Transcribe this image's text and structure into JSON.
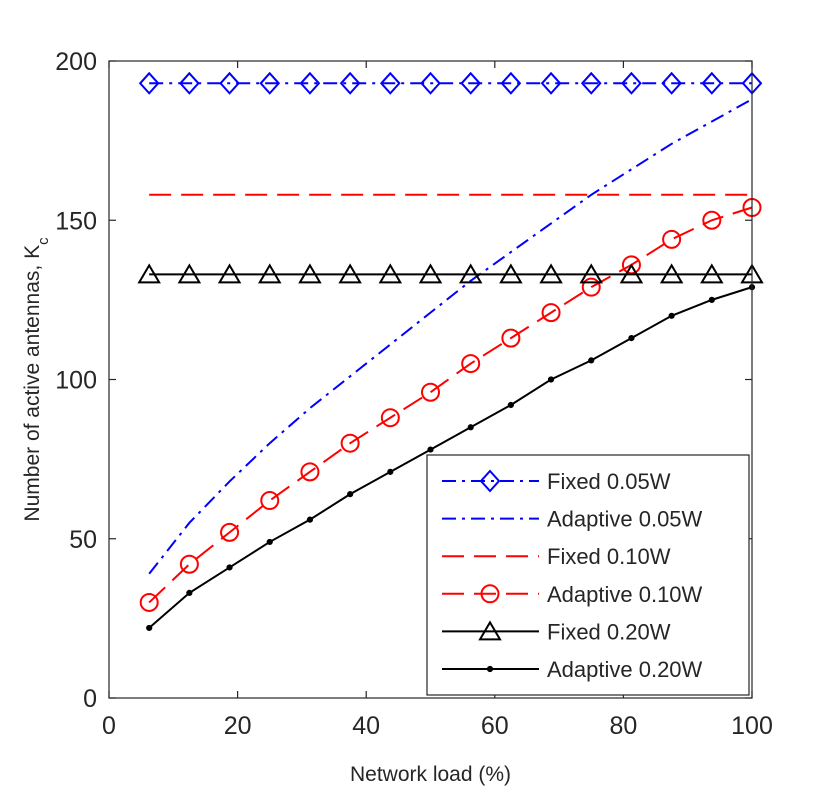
{
  "chart_data": {
    "type": "line",
    "xlabel": "Network load (%)",
    "ylabel": "Number of active antennas, K",
    "ylabel_subscript": "c",
    "xlim": [
      0,
      100
    ],
    "ylim": [
      0,
      200
    ],
    "xticks": [
      0,
      20,
      40,
      60,
      80,
      100
    ],
    "yticks": [
      0,
      50,
      100,
      150,
      200
    ],
    "grid": false,
    "legend_position": "bottom-right",
    "series": [
      {
        "name": "Fixed 0.05W",
        "color": "#0000ff",
        "line_style": "dash-dot",
        "marker": "diamond",
        "x": [
          6.25,
          12.5,
          18.75,
          25,
          31.25,
          37.5,
          43.75,
          50,
          56.25,
          62.5,
          68.75,
          75,
          81.25,
          87.5,
          93.75,
          100
        ],
        "y": [
          193,
          193,
          193,
          193,
          193,
          193,
          193,
          193,
          193,
          193,
          193,
          193,
          193,
          193,
          193,
          193
        ]
      },
      {
        "name": "Adaptive 0.05W",
        "color": "#0000ff",
        "line_style": "dash-dot",
        "marker": "none",
        "x": [
          6.25,
          12.5,
          18.75,
          25,
          31.25,
          37.5,
          43.75,
          50,
          56.25,
          62.5,
          68.75,
          75,
          81.25,
          87.5,
          93.75,
          100
        ],
        "y": [
          39,
          55,
          68,
          80,
          91,
          101,
          111,
          121,
          131,
          140,
          149,
          158,
          166,
          174,
          181,
          188
        ]
      },
      {
        "name": "Fixed 0.10W",
        "color": "#ff0000",
        "line_style": "dashed",
        "marker": "none",
        "x": [
          6.25,
          100
        ],
        "y": [
          158,
          158
        ]
      },
      {
        "name": "Adaptive 0.10W",
        "color": "#ff0000",
        "line_style": "dashed",
        "marker": "circle",
        "x": [
          6.25,
          12.5,
          18.75,
          25,
          31.25,
          37.5,
          43.75,
          50,
          56.25,
          62.5,
          68.75,
          75,
          81.25,
          87.5,
          93.75,
          100
        ],
        "y": [
          30,
          42,
          52,
          62,
          71,
          80,
          88,
          96,
          105,
          113,
          121,
          129,
          136,
          144,
          150,
          154
        ]
      },
      {
        "name": "Fixed 0.20W",
        "color": "#000000",
        "line_style": "solid",
        "marker": "triangle",
        "x": [
          6.25,
          12.5,
          18.75,
          25,
          31.25,
          37.5,
          43.75,
          50,
          56.25,
          62.5,
          68.75,
          75,
          81.25,
          87.5,
          93.75,
          100
        ],
        "y": [
          133,
          133,
          133,
          133,
          133,
          133,
          133,
          133,
          133,
          133,
          133,
          133,
          133,
          133,
          133,
          133
        ]
      },
      {
        "name": "Adaptive 0.20W",
        "color": "#000000",
        "line_style": "solid",
        "marker": "dot",
        "x": [
          6.25,
          12.5,
          18.75,
          25,
          31.25,
          37.5,
          43.75,
          50,
          56.25,
          62.5,
          68.75,
          75,
          81.25,
          87.5,
          93.75,
          100
        ],
        "y": [
          22,
          33,
          41,
          49,
          56,
          64,
          71,
          78,
          85,
          92,
          100,
          106,
          113,
          120,
          125,
          129
        ]
      }
    ]
  }
}
